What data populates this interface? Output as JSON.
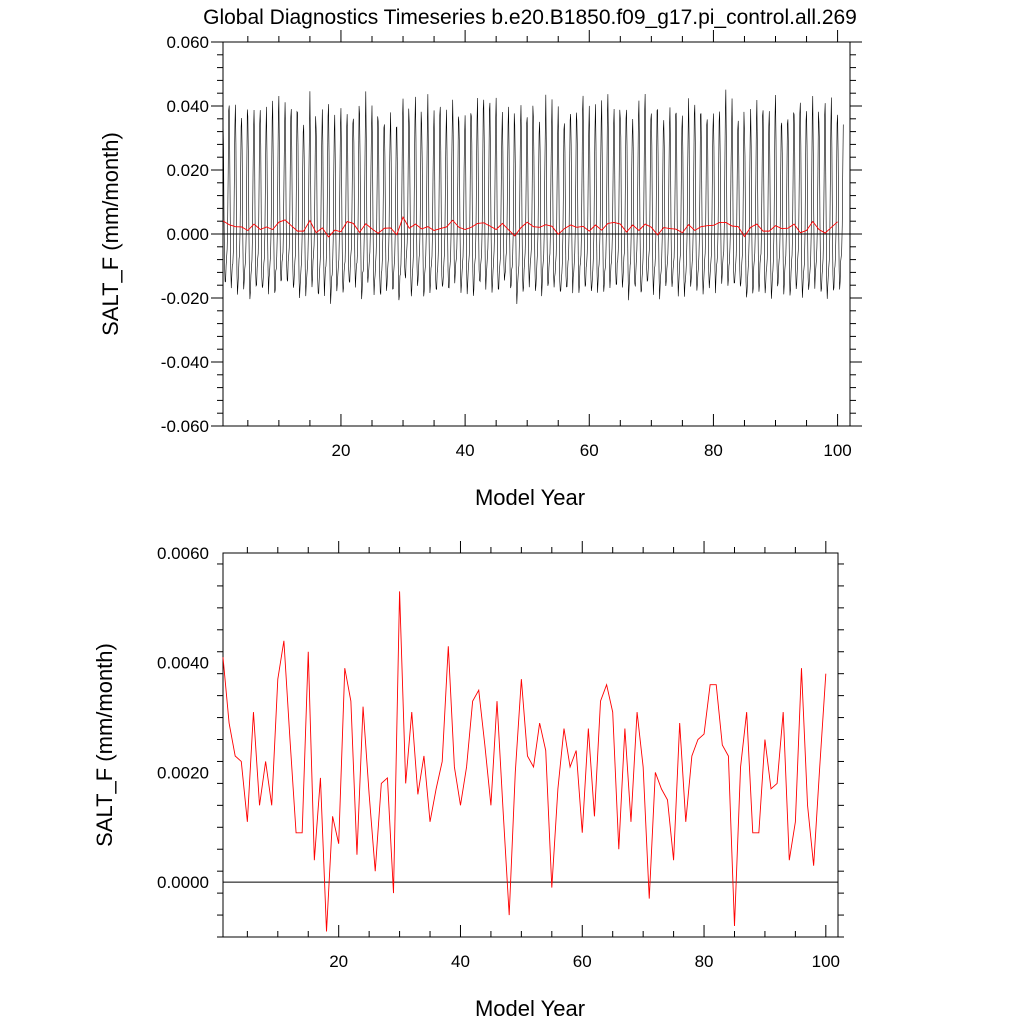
{
  "page_title": "Global Diagnostics Timeseries b.e20.B1850.f09_g17.pi_control.all.269",
  "colors": {
    "monthly": "#000000",
    "annual": "#ff0000",
    "zero_line": "#000000"
  },
  "chart_data": [
    {
      "type": "line",
      "title": "Global Diagnostics Timeseries b.e20.B1850.f09_g17.pi_control.all.269",
      "xlabel": "Model Year",
      "ylabel": "SALT_F (mm/month)",
      "xlim": [
        1,
        102
      ],
      "ylim": [
        -0.06,
        0.06
      ],
      "xticks": [
        20,
        40,
        60,
        80,
        100
      ],
      "yticks": [
        -0.06,
        -0.04,
        -0.02,
        0.0,
        0.02,
        0.04,
        0.06
      ],
      "ytick_labels": [
        "-0.060",
        "-0.040",
        "-0.020",
        "0.000",
        "0.020",
        "0.040",
        "0.060"
      ],
      "grid": false,
      "series": [
        {
          "key": "monthly",
          "color": "#000000",
          "encoding": "monthly values, seasonal cycle",
          "amplitude_max": 0.043,
          "amplitude_min": -0.032
        },
        {
          "key": "annual",
          "color": "#ff0000",
          "source": "chart_data.1.series.0.values"
        }
      ],
      "reference_line": 0.0
    },
    {
      "type": "line",
      "xlabel": "Model Year",
      "ylabel": "SALT_F (mm/month)",
      "xlim": [
        1,
        102
      ],
      "ylim": [
        -0.001,
        0.006
      ],
      "xticks": [
        20,
        40,
        60,
        80,
        100
      ],
      "yticks": [
        0.0,
        0.002,
        0.004,
        0.006
      ],
      "ytick_labels": [
        "0.0000",
        "0.0020",
        "0.0040",
        "0.0060"
      ],
      "grid": false,
      "reference_line": 0.0,
      "series": [
        {
          "key": "annual",
          "color": "#ff0000",
          "x_start": 1,
          "values": [
            0.0041,
            0.0029,
            0.0023,
            0.0022,
            0.0011,
            0.0031,
            0.0014,
            0.0022,
            0.0014,
            0.0037,
            0.0044,
            0.0026,
            0.0009,
            0.0009,
            0.0042,
            0.0004,
            0.0019,
            -0.0009,
            0.0012,
            0.0007,
            0.0039,
            0.0033,
            0.0005,
            0.0032,
            0.0016,
            0.0002,
            0.0018,
            0.0019,
            -0.0002,
            0.0053,
            0.0018,
            0.0031,
            0.0016,
            0.0023,
            0.0011,
            0.0017,
            0.0022,
            0.0043,
            0.0021,
            0.0014,
            0.0021,
            0.0033,
            0.0035,
            0.0025,
            0.0014,
            0.0033,
            0.0013,
            -0.0006,
            0.002,
            0.0037,
            0.0023,
            0.0021,
            0.0029,
            0.0024,
            -0.0001,
            0.0017,
            0.0028,
            0.0021,
            0.0024,
            0.0009,
            0.0028,
            0.0012,
            0.0033,
            0.0036,
            0.0031,
            0.0006,
            0.0028,
            0.0011,
            0.0031,
            0.0021,
            -0.0003,
            0.002,
            0.0017,
            0.0015,
            0.0004,
            0.0029,
            0.0011,
            0.0023,
            0.0026,
            0.0027,
            0.0036,
            0.0036,
            0.0025,
            0.0023,
            -0.0008,
            0.0021,
            0.0031,
            0.0009,
            0.0009,
            0.0026,
            0.0017,
            0.0018,
            0.0031,
            0.0004,
            0.0011,
            0.0039,
            0.0014,
            0.0003,
            0.0021,
            0.0038
          ]
        }
      ]
    }
  ]
}
